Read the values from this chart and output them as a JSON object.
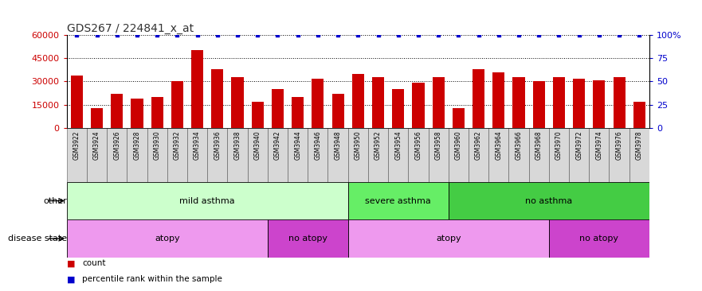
{
  "title": "GDS267 / 224841_x_at",
  "samples": [
    "GSM3922",
    "GSM3924",
    "GSM3926",
    "GSM3928",
    "GSM3930",
    "GSM3932",
    "GSM3934",
    "GSM3936",
    "GSM3938",
    "GSM3940",
    "GSM3942",
    "GSM3944",
    "GSM3946",
    "GSM3948",
    "GSM3950",
    "GSM3952",
    "GSM3954",
    "GSM3956",
    "GSM3958",
    "GSM3960",
    "GSM3962",
    "GSM3964",
    "GSM3966",
    "GSM3968",
    "GSM3970",
    "GSM3972",
    "GSM3974",
    "GSM3976",
    "GSM3978"
  ],
  "counts": [
    34000,
    13000,
    22000,
    19000,
    20000,
    30000,
    50000,
    38000,
    33000,
    17000,
    25000,
    20000,
    32000,
    22000,
    35000,
    33000,
    25000,
    29000,
    33000,
    13000,
    38000,
    36000,
    33000,
    30000,
    33000,
    32000,
    31000,
    33000,
    17000
  ],
  "bar_color": "#cc0000",
  "percentile_color": "#0000cc",
  "ylim_left": [
    0,
    60000
  ],
  "ylim_right": [
    0,
    100
  ],
  "yticks_left": [
    0,
    15000,
    30000,
    45000,
    60000
  ],
  "yticks_right": [
    0,
    25,
    50,
    75,
    100
  ],
  "ytick_right_labels": [
    "0",
    "25",
    "50",
    "75",
    "100%"
  ],
  "grid_values": [
    15000,
    30000,
    45000,
    60000
  ],
  "other_groups": [
    {
      "label": "mild asthma",
      "start": 0,
      "end": 14,
      "color": "#ccffcc"
    },
    {
      "label": "severe asthma",
      "start": 14,
      "end": 19,
      "color": "#66ee66"
    },
    {
      "label": "no asthma",
      "start": 19,
      "end": 29,
      "color": "#44cc44"
    }
  ],
  "disease_groups": [
    {
      "label": "atopy",
      "start": 0,
      "end": 10,
      "color": "#ee99ee"
    },
    {
      "label": "no atopy",
      "start": 10,
      "end": 14,
      "color": "#cc44cc"
    },
    {
      "label": "atopy",
      "start": 14,
      "end": 24,
      "color": "#ee99ee"
    },
    {
      "label": "no atopy",
      "start": 24,
      "end": 29,
      "color": "#cc44cc"
    }
  ],
  "other_row_label": "other",
  "disease_row_label": "disease state",
  "tick_bg_color": "#d8d8d8",
  "legend_items": [
    {
      "color": "#cc0000",
      "label": "count"
    },
    {
      "color": "#0000cc",
      "label": "percentile rank within the sample"
    }
  ]
}
